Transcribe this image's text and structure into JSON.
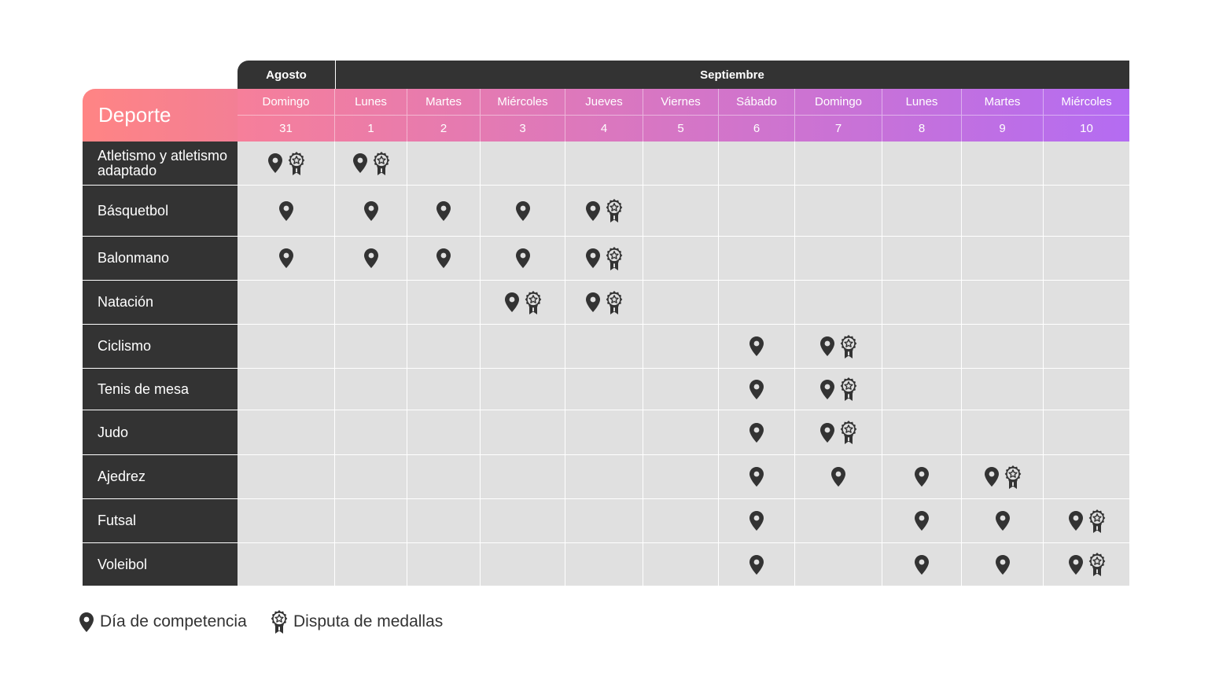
{
  "months": [
    {
      "label": "Agosto"
    },
    {
      "label": "Septiembre"
    }
  ],
  "corner_label": "Deporte",
  "days": [
    {
      "weekday": "Domingo",
      "date": "31"
    },
    {
      "weekday": "Lunes",
      "date": "1"
    },
    {
      "weekday": "Martes",
      "date": "2"
    },
    {
      "weekday": "Miércoles",
      "date": "3"
    },
    {
      "weekday": "Jueves",
      "date": "4"
    },
    {
      "weekday": "Viernes",
      "date": "5"
    },
    {
      "weekday": "Sábado",
      "date": "6"
    },
    {
      "weekday": "Domingo",
      "date": "7"
    },
    {
      "weekday": "Lunes",
      "date": "8"
    },
    {
      "weekday": "Martes",
      "date": "9"
    },
    {
      "weekday": "Miércoles",
      "date": "10"
    }
  ],
  "header_gradient": {
    "start": "#f67f9a",
    "end": "#b46cf2"
  },
  "icons": {
    "competition": "map-pin-icon",
    "medal": "medal-icon"
  },
  "sports": [
    {
      "name": "Atletismo y atletismo adaptado",
      "cells": [
        "PM",
        "PM",
        "",
        "",
        "",
        "",
        "",
        "",
        "",
        "",
        ""
      ]
    },
    {
      "name": "Básquetbol",
      "cells": [
        "P",
        "P",
        "P",
        "P",
        "PM",
        "",
        "",
        "",
        "",
        "",
        ""
      ]
    },
    {
      "name": "Balonmano",
      "cells": [
        "P",
        "P",
        "P",
        "P",
        "PM",
        "",
        "",
        "",
        "",
        "",
        ""
      ]
    },
    {
      "name": "Natación",
      "cells": [
        "",
        "",
        "",
        "PM",
        "PM",
        "",
        "",
        "",
        "",
        "",
        ""
      ]
    },
    {
      "name": "Ciclismo",
      "cells": [
        "",
        "",
        "",
        "",
        "",
        "",
        "P",
        "PM",
        "",
        "",
        ""
      ]
    },
    {
      "name": "Tenis de mesa",
      "cells": [
        "",
        "",
        "",
        "",
        "",
        "",
        "P",
        "PM",
        "",
        "",
        ""
      ]
    },
    {
      "name": "Judo",
      "cells": [
        "",
        "",
        "",
        "",
        "",
        "",
        "P",
        "PM",
        "",
        "",
        ""
      ]
    },
    {
      "name": "Ajedrez",
      "cells": [
        "",
        "",
        "",
        "",
        "",
        "",
        "P",
        "P",
        "P",
        "PM",
        ""
      ]
    },
    {
      "name": "Futsal",
      "cells": [
        "",
        "",
        "",
        "",
        "",
        "",
        "P",
        "",
        "P",
        "P",
        "PM"
      ]
    },
    {
      "name": "Voleibol",
      "cells": [
        "",
        "",
        "",
        "",
        "",
        "",
        "P",
        "",
        "P",
        "P",
        "PM"
      ]
    }
  ],
  "legend": [
    {
      "icon": "map-pin-icon",
      "label": "Día de competencia"
    },
    {
      "icon": "medal-icon",
      "label": "Disputa de medallas"
    }
  ]
}
